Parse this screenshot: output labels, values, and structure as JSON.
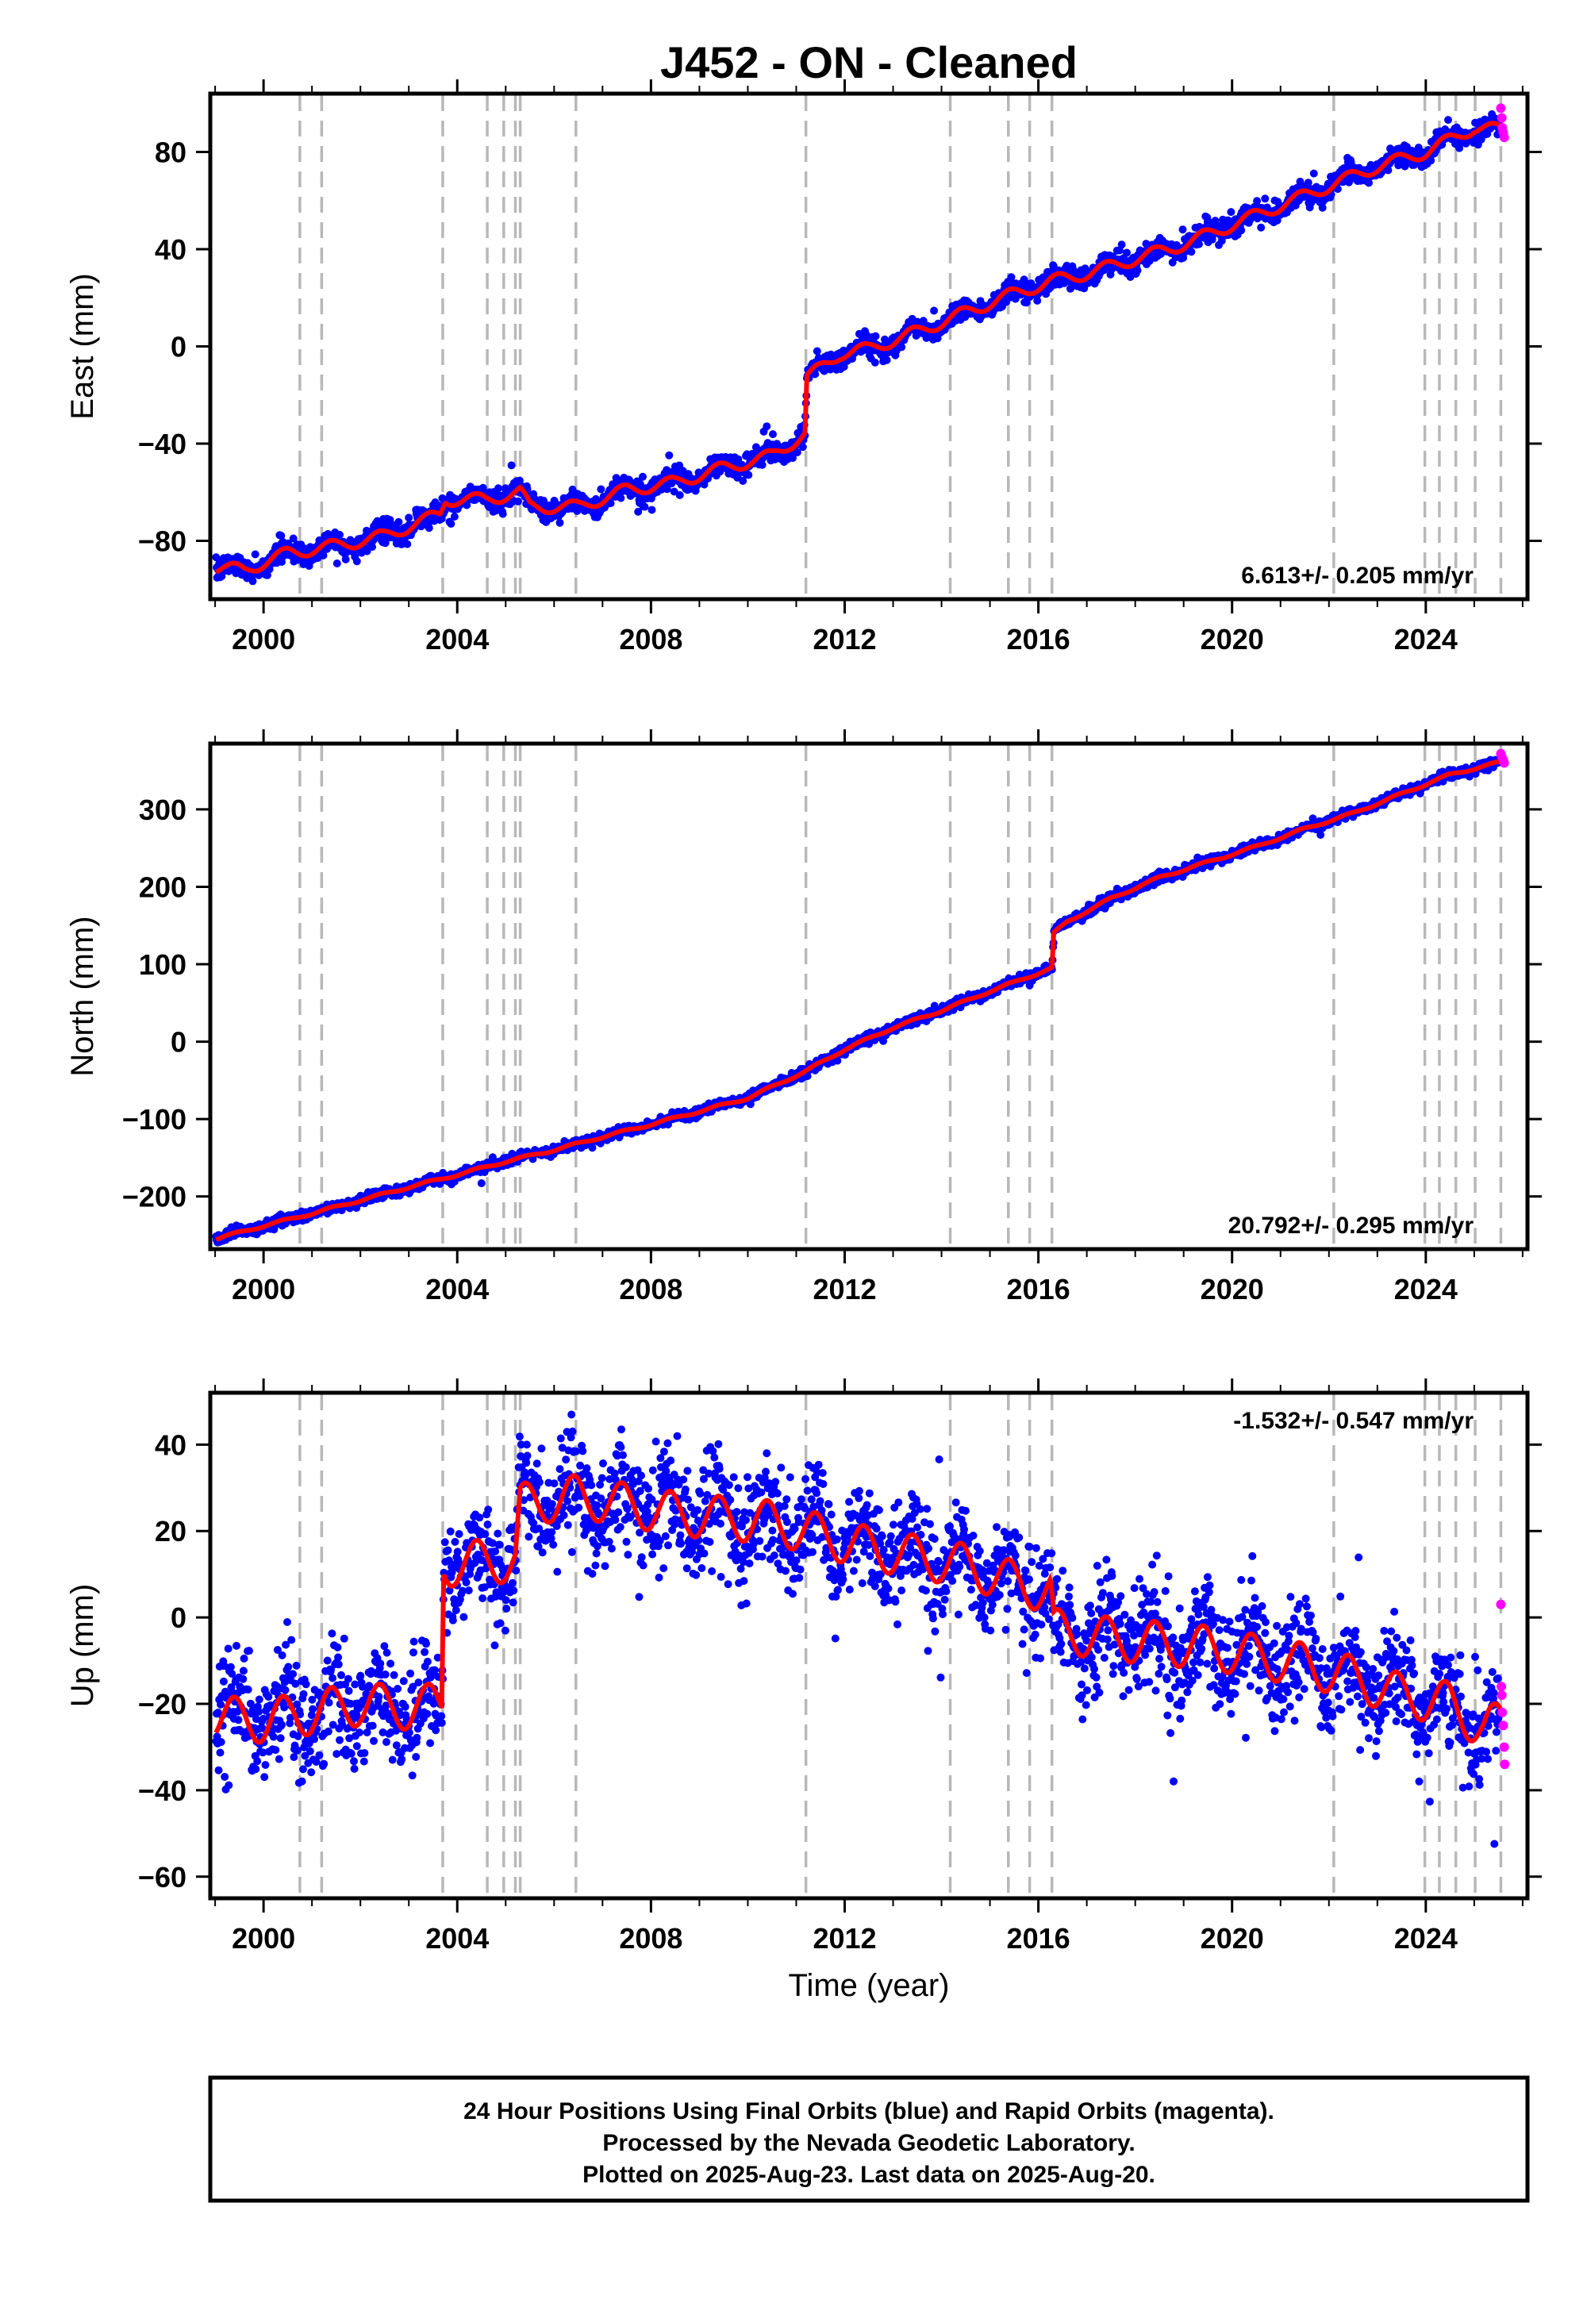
{
  "chart_data": {
    "title": "J452  - ON - Cleaned",
    "xlabel": "Time (year)",
    "xlim": [
      1998.9,
      2026.1
    ],
    "xticks": [
      2000,
      2004,
      2008,
      2012,
      2016,
      2020,
      2024
    ],
    "event_lines": [
      2000.75,
      2001.2,
      2003.7,
      2004.62,
      2004.96,
      2005.2,
      2005.3,
      2006.45,
      2011.2,
      2014.18,
      2015.38,
      2015.82,
      2016.28,
      2022.1,
      2023.98,
      2024.28,
      2024.62,
      2025.02,
      2025.55
    ],
    "legend_note": {
      "final_orbits_color": "#0000ff",
      "rapid_orbits_color": "#ff00ff",
      "model_color": "#ff0000"
    },
    "panels": [
      {
        "type": "scatter",
        "ylabel": "East (mm)",
        "ylim": [
          -104,
          104
        ],
        "yticks": [
          -80,
          -40,
          0,
          40,
          80
        ],
        "rate_label": "6.613+/- 0.205 mm/yr",
        "rate_position": "bottom-right",
        "noise_mm": 2.2,
        "seasonal_amp_mm": 2.5,
        "model_trend_points": [
          [
            1999.0,
            -91
          ],
          [
            1999.6,
            -92
          ],
          [
            2000.5,
            -85
          ],
          [
            2001.5,
            -82
          ],
          [
            2002.5,
            -78
          ],
          [
            2003.65,
            -69
          ],
          [
            2003.75,
            -63
          ],
          [
            2004.6,
            -63
          ],
          [
            2005.3,
            -60
          ],
          [
            2005.5,
            -66
          ],
          [
            2006.5,
            -66
          ],
          [
            2007.5,
            -59
          ],
          [
            2008.5,
            -56
          ],
          [
            2009.5,
            -50
          ],
          [
            2010.5,
            -45
          ],
          [
            2011.18,
            -36
          ],
          [
            2011.22,
            -13
          ],
          [
            2011.9,
            -3
          ],
          [
            2012.5,
            -1
          ],
          [
            2013.5,
            6
          ],
          [
            2014.5,
            14
          ],
          [
            2015.4,
            21
          ],
          [
            2016.3,
            27
          ],
          [
            2017.0,
            30
          ],
          [
            2018.0,
            36
          ],
          [
            2019.0,
            42
          ],
          [
            2020.0,
            50
          ],
          [
            2021.0,
            58
          ],
          [
            2022.0,
            66
          ],
          [
            2023.0,
            74
          ],
          [
            2024.0,
            80
          ],
          [
            2025.0,
            90
          ],
          [
            2025.6,
            89
          ]
        ],
        "rapid_points": [
          [
            2025.55,
            98
          ],
          [
            2025.57,
            94
          ],
          [
            2025.58,
            90
          ],
          [
            2025.6,
            88
          ],
          [
            2025.62,
            86
          ]
        ]
      },
      {
        "type": "scatter",
        "ylabel": "North (mm)",
        "ylim": [
          -268,
          385
        ],
        "yticks": [
          -200,
          -100,
          0,
          100,
          200,
          300
        ],
        "rate_label": "20.792+/- 0.295 mm/yr",
        "rate_position": "bottom-right",
        "noise_mm": 3.0,
        "seasonal_amp_mm": 1.5,
        "model_trend_points": [
          [
            1999.0,
            -255
          ],
          [
            2000.0,
            -238
          ],
          [
            2001.0,
            -222
          ],
          [
            2002.0,
            -205
          ],
          [
            2003.0,
            -188
          ],
          [
            2004.0,
            -172
          ],
          [
            2005.0,
            -155
          ],
          [
            2006.0,
            -140
          ],
          [
            2007.0,
            -123
          ],
          [
            2008.0,
            -107
          ],
          [
            2009.0,
            -90
          ],
          [
            2010.0,
            -73
          ],
          [
            2011.2,
            -38
          ],
          [
            2012.0,
            -10
          ],
          [
            2013.0,
            18
          ],
          [
            2014.0,
            40
          ],
          [
            2015.0,
            65
          ],
          [
            2016.28,
            95
          ],
          [
            2016.32,
            140
          ],
          [
            2016.6,
            155
          ],
          [
            2017.5,
            185
          ],
          [
            2018.5,
            212
          ],
          [
            2019.5,
            232
          ],
          [
            2020.5,
            252
          ],
          [
            2021.5,
            275
          ],
          [
            2022.5,
            295
          ],
          [
            2023.5,
            320
          ],
          [
            2024.5,
            345
          ],
          [
            2025.6,
            362
          ]
        ],
        "rapid_points": [
          [
            2025.55,
            372
          ],
          [
            2025.57,
            368
          ],
          [
            2025.6,
            364
          ],
          [
            2025.62,
            360
          ]
        ]
      },
      {
        "type": "scatter",
        "ylabel": "Up (mm)",
        "ylim": [
          -65,
          52
        ],
        "yticks": [
          -60,
          -40,
          -20,
          0,
          20,
          40
        ],
        "rate_label": "-1.532+/- 0.547 mm/yr",
        "rate_position": "top-right",
        "noise_mm": 6.0,
        "seasonal_amp_mm": 5.0,
        "model_trend_points": [
          [
            1999.0,
            -23
          ],
          [
            2000.0,
            -24
          ],
          [
            2001.0,
            -22
          ],
          [
            2002.0,
            -20
          ],
          [
            2003.0,
            -21
          ],
          [
            2003.68,
            -20
          ],
          [
            2003.72,
            12
          ],
          [
            2004.5,
            13
          ],
          [
            2005.2,
            13
          ],
          [
            2005.3,
            26
          ],
          [
            2006.5,
            28
          ],
          [
            2007.5,
            26
          ],
          [
            2008.5,
            24
          ],
          [
            2009.5,
            23
          ],
          [
            2010.5,
            22
          ],
          [
            2011.5,
            19
          ],
          [
            2012.5,
            16
          ],
          [
            2013.5,
            14
          ],
          [
            2014.5,
            12
          ],
          [
            2015.5,
            8
          ],
          [
            2016.25,
            6
          ],
          [
            2016.32,
            -3
          ],
          [
            2017.5,
            -5
          ],
          [
            2018.5,
            -6
          ],
          [
            2019.5,
            -7
          ],
          [
            2020.5,
            -9
          ],
          [
            2021.5,
            -11
          ],
          [
            2022.5,
            -14
          ],
          [
            2023.5,
            -18
          ],
          [
            2024.5,
            -20
          ],
          [
            2025.2,
            -26
          ],
          [
            2025.6,
            -24
          ]
        ],
        "rapid_points": [
          [
            2025.55,
            3
          ],
          [
            2025.56,
            -16
          ],
          [
            2025.57,
            -18
          ],
          [
            2025.58,
            -22
          ],
          [
            2025.6,
            -25
          ],
          [
            2025.62,
            -30
          ],
          [
            2025.63,
            -34
          ]
        ]
      }
    ]
  },
  "footer": {
    "line1": "24 Hour Positions Using Final Orbits (blue) and Rapid Orbits (magenta).",
    "line2": "Processed by the Nevada Geodetic Laboratory.",
    "line3": "Plotted on 2025-Aug-23. Last data on 2025-Aug-20."
  }
}
